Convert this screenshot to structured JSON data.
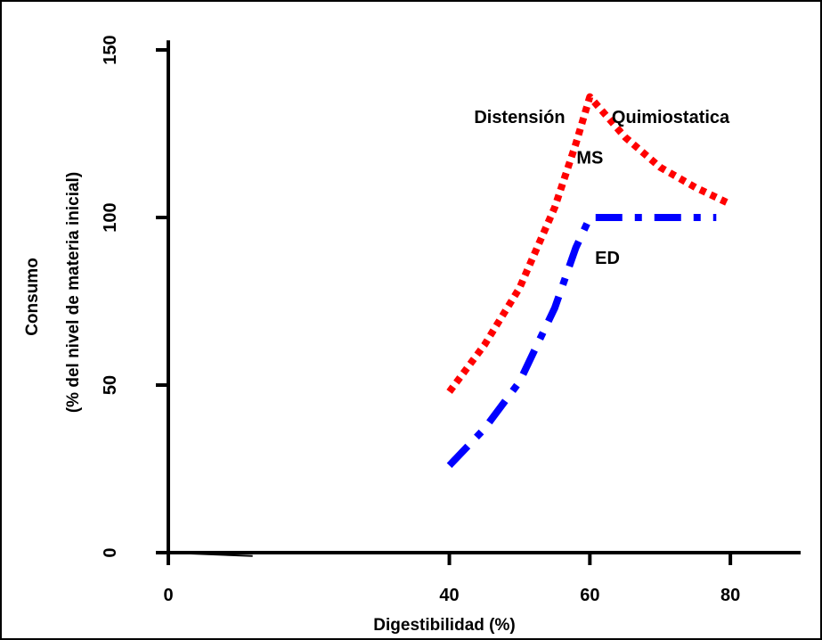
{
  "chart_data": {
    "type": "line",
    "title": "",
    "xlabel": "Digestibilidad (%)",
    "ylabel_line1": "Consumo",
    "ylabel_line2": "(% del nivel de materia inicial)",
    "xlim": [
      0,
      90
    ],
    "ylim": [
      0,
      155
    ],
    "x_ticks": [
      {
        "value": 0,
        "label": "0"
      },
      {
        "value": 40,
        "label": "40"
      },
      {
        "value": 60,
        "label": "60"
      },
      {
        "value": 80,
        "label": "80"
      }
    ],
    "y_ticks": [
      {
        "value": 0,
        "label": "0"
      },
      {
        "value": 50,
        "label": "50"
      },
      {
        "value": 100,
        "label": "100"
      },
      {
        "value": 150,
        "label": "150"
      }
    ],
    "grid": false,
    "series": [
      {
        "name": "MS",
        "color": "#ff0000",
        "style": "dotted",
        "x": [
          40,
          45,
          50,
          55,
          58,
          60,
          65,
          70,
          75,
          80
        ],
        "y": [
          48,
          62,
          79,
          103,
          122,
          136,
          124,
          115,
          109,
          104
        ]
      },
      {
        "name": "ED",
        "color": "#0000ff",
        "style": "dash-dot",
        "x": [
          40,
          45,
          50,
          55,
          58,
          60,
          65,
          70,
          75,
          78
        ],
        "y": [
          26,
          37,
          51,
          73,
          91,
          100,
          100,
          100,
          100,
          100
        ]
      },
      {
        "name": "",
        "color": "#000000",
        "style": "solid",
        "x": [
          0,
          12
        ],
        "y": [
          0,
          -1
        ]
      }
    ],
    "annotations": [
      {
        "text": "Distensión",
        "x": 50,
        "y": 130
      },
      {
        "text": "Quimiostatica",
        "x": 71.5,
        "y": 130
      },
      {
        "text": "MS",
        "x": 60,
        "y": 118
      },
      {
        "text": "ED",
        "x": 62.5,
        "y": 88
      }
    ]
  }
}
